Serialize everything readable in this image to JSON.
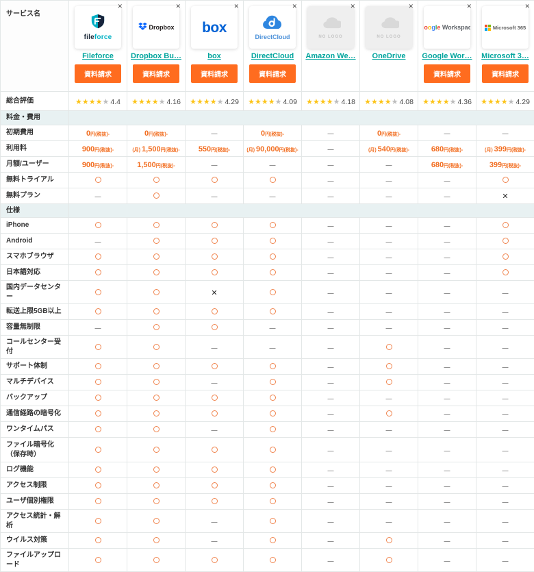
{
  "header": {
    "corner_label": "サービス名",
    "request_button_label": "資料請求",
    "close_label": "✕"
  },
  "colors": {
    "accent_orange": "#ff6c1f",
    "link_teal": "#00a49d",
    "price_orange": "#f26e21",
    "circle_orange": "#f0854f",
    "star_yellow": "#fcc419",
    "star_gray": "#bdbdbd",
    "section_bg": "#e8f1f2"
  },
  "services": [
    {
      "display_name": "Fileforce",
      "has_button": true,
      "logo": {
        "type": "fileforce",
        "text_dark": "file",
        "text_teal": "force"
      }
    },
    {
      "display_name": "Dropbox Bu…",
      "has_button": true,
      "logo": {
        "type": "dropbox",
        "text": "Dropbox"
      }
    },
    {
      "display_name": "box",
      "has_button": true,
      "logo": {
        "type": "box",
        "text": "box"
      }
    },
    {
      "display_name": "DirectCloud",
      "has_button": true,
      "logo": {
        "type": "directcloud",
        "text": "DirectCloud",
        "letter": "d"
      }
    },
    {
      "display_name": "Amazon We…",
      "has_button": false,
      "logo": {
        "type": "nologo",
        "text": "NO LOGO"
      }
    },
    {
      "display_name": "OneDrive",
      "has_button": false,
      "logo": {
        "type": "nologo",
        "text": "NO LOGO"
      }
    },
    {
      "display_name": "Google Wor…",
      "has_button": true,
      "logo": {
        "type": "google",
        "letters": [
          "G",
          "o",
          "o",
          "g",
          "l",
          "e"
        ],
        "letter_colors": [
          "#4285F4",
          "#EA4335",
          "#FBBC05",
          "#4285F4",
          "#34A853",
          "#EA4335"
        ],
        "suffix": " Workspace"
      }
    },
    {
      "display_name": "Microsoft 3…",
      "has_button": true,
      "logo": {
        "type": "microsoft",
        "text": "Microsoft 365",
        "square_colors": [
          "#F25022",
          "#7FBA00",
          "#00A4EF",
          "#FFB900"
        ]
      }
    }
  ],
  "rating_row": {
    "label": "総合評価",
    "star": "★",
    "full_stars": 4,
    "empty_stars": 1,
    "values": [
      "4.4",
      "4.16",
      "4.29",
      "4.09",
      "4.18",
      "4.08",
      "4.36",
      "4.29"
    ]
  },
  "symbols": {
    "supported": "○",
    "not_supported": "✕",
    "none": "—"
  },
  "sections": [
    {
      "label": "料金・費用",
      "rows": [
        {
          "label": "初期費用",
          "values": [
            {
              "n": "0",
              "s": "円(税抜)-"
            },
            {
              "n": "0",
              "s": "円(税抜)-"
            },
            "-",
            {
              "n": "0",
              "s": "円(税抜)-"
            },
            "-",
            {
              "n": "0",
              "s": "円(税抜)-"
            },
            "-",
            "-"
          ]
        },
        {
          "label": "利用料",
          "values": [
            {
              "n": "900",
              "s": "円(税抜)-"
            },
            {
              "p": "(月)",
              "n": "1,500",
              "s": "円(税抜)-"
            },
            {
              "n": "550",
              "s": "円(税抜)-"
            },
            {
              "p": "(月)",
              "n": "90,000",
              "s": "円(税抜)-"
            },
            "-",
            {
              "p": "(月)",
              "n": "540",
              "s": "円(税抜)-"
            },
            {
              "n": "680",
              "s": "円(税抜)-"
            },
            {
              "p": "(月)",
              "n": "399",
              "s": "円(税抜)-"
            }
          ]
        },
        {
          "label": "月額/ユーザー",
          "values": [
            {
              "n": "900",
              "s": "円(税抜)-"
            },
            {
              "n": "1,500",
              "s": "円(税抜)-"
            },
            "-",
            "-",
            "-",
            "-",
            {
              "n": "680",
              "s": "円(税抜)-"
            },
            {
              "n": "399",
              "s": "円(税抜)-"
            }
          ]
        },
        {
          "label": "無料トライアル",
          "values": [
            "o",
            "o",
            "o",
            "o",
            "-",
            "-",
            "-",
            "o"
          ]
        },
        {
          "label": "無料プラン",
          "values": [
            "-",
            "o",
            "-",
            "-",
            "-",
            "-",
            "-",
            "x"
          ]
        }
      ]
    },
    {
      "label": "仕様",
      "rows": [
        {
          "label": "iPhone",
          "values": [
            "o",
            "o",
            "o",
            "o",
            "-",
            "-",
            "-",
            "o"
          ]
        },
        {
          "label": "Android",
          "values": [
            "-",
            "o",
            "o",
            "o",
            "-",
            "-",
            "-",
            "o"
          ]
        },
        {
          "label": "スマホブラウザ",
          "values": [
            "o",
            "o",
            "o",
            "o",
            "-",
            "-",
            "-",
            "o"
          ]
        },
        {
          "label": "日本語対応",
          "values": [
            "o",
            "o",
            "o",
            "o",
            "-",
            "-",
            "-",
            "o"
          ]
        },
        {
          "label": "国内データセンター",
          "values": [
            "o",
            "o",
            "x",
            "o",
            "-",
            "-",
            "-",
            "-"
          ]
        },
        {
          "label": "転送上限5GB以上",
          "values": [
            "o",
            "o",
            "o",
            "o",
            "-",
            "-",
            "-",
            "-"
          ]
        },
        {
          "label": "容量無制限",
          "values": [
            "-",
            "o",
            "o",
            "-",
            "-",
            "-",
            "-",
            "-"
          ]
        },
        {
          "label": "コールセンター受付",
          "values": [
            "o",
            "o",
            "-",
            "-",
            "-",
            "o",
            "-",
            "-"
          ]
        },
        {
          "label": "サポート体制",
          "values": [
            "o",
            "o",
            "o",
            "o",
            "-",
            "o",
            "-",
            "-"
          ]
        },
        {
          "label": "マルチデバイス",
          "values": [
            "o",
            "o",
            "-",
            "o",
            "-",
            "o",
            "-",
            "-"
          ]
        },
        {
          "label": "バックアップ",
          "values": [
            "o",
            "o",
            "o",
            "o",
            "-",
            "-",
            "-",
            "-"
          ]
        },
        {
          "label": "通信経路の暗号化",
          "values": [
            "o",
            "o",
            "o",
            "o",
            "-",
            "o",
            "-",
            "-"
          ]
        },
        {
          "label": "ワンタイムパス",
          "values": [
            "o",
            "o",
            "-",
            "o",
            "-",
            "-",
            "-",
            "-"
          ]
        },
        {
          "label": "ファイル暗号化（保存時）",
          "tall": true,
          "values": [
            "o",
            "o",
            "o",
            "o",
            "-",
            "-",
            "-",
            "-"
          ]
        },
        {
          "label": "ログ機能",
          "values": [
            "o",
            "o",
            "o",
            "o",
            "-",
            "-",
            "-",
            "-"
          ]
        },
        {
          "label": "アクセス制限",
          "values": [
            "o",
            "o",
            "o",
            "o",
            "-",
            "-",
            "-",
            "-"
          ]
        },
        {
          "label": "ユーザ個別権限",
          "values": [
            "o",
            "o",
            "o",
            "o",
            "-",
            "-",
            "-",
            "-"
          ]
        },
        {
          "label": "アクセス統計・解析",
          "values": [
            "o",
            "o",
            "-",
            "o",
            "-",
            "-",
            "-",
            "-"
          ]
        },
        {
          "label": "ウイルス対策",
          "values": [
            "o",
            "o",
            "-",
            "o",
            "-",
            "o",
            "-",
            "-"
          ]
        },
        {
          "label": "ファイルアップロード",
          "values": [
            "o",
            "o",
            "o",
            "o",
            "-",
            "o",
            "-",
            "-"
          ]
        }
      ]
    }
  ]
}
